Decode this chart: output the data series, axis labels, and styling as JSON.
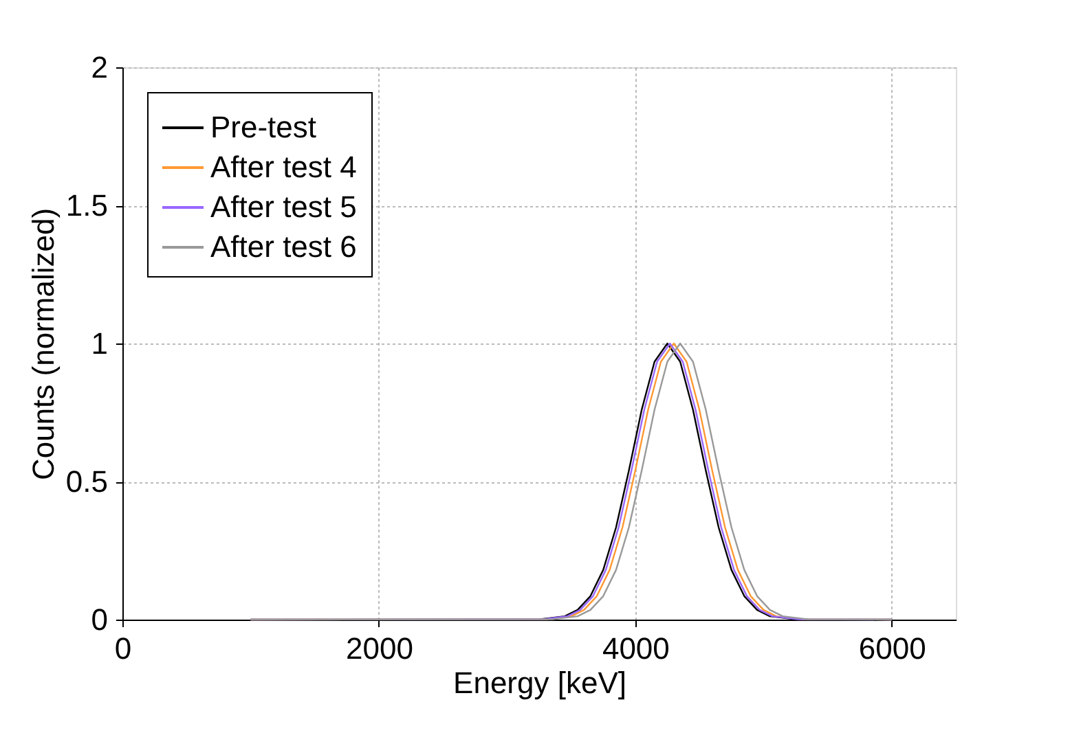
{
  "chart_data": {
    "type": "line",
    "xlabel": "Energy [keV]",
    "ylabel": "Counts (normalized)",
    "xlim": [
      0,
      6500
    ],
    "xticks": [
      0,
      2000,
      4000,
      6000
    ],
    "ylim": [
      0,
      2
    ],
    "yticks": [
      0,
      0.5,
      1,
      1.5,
      2
    ],
    "grid": true,
    "legend": "top left",
    "line_style": "solid",
    "marker": "none",
    "series": [
      {
        "name": "Pre-test",
        "color": "#000000",
        "x": [
          1000,
          3250,
          3450,
          3550,
          3650,
          3750,
          3850,
          3950,
          4050,
          4150,
          4250,
          4350,
          4450,
          4550,
          4650,
          4750,
          4850,
          4950,
          5050,
          5250,
          6000
        ],
        "values": [
          0,
          0.001,
          0.012,
          0.035,
          0.085,
          0.18,
          0.334,
          0.54,
          0.76,
          0.934,
          1,
          0.934,
          0.76,
          0.54,
          0.334,
          0.18,
          0.085,
          0.035,
          0.012,
          0.001,
          0
        ]
      },
      {
        "name": "After test 4",
        "color": "#ff9933",
        "x": [
          1000,
          3300,
          3500,
          3600,
          3700,
          3800,
          3900,
          4000,
          4100,
          4200,
          4300,
          4400,
          4500,
          4600,
          4700,
          4800,
          4900,
          5000,
          5100,
          5300,
          6000
        ],
        "values": [
          0,
          0.001,
          0.012,
          0.035,
          0.085,
          0.18,
          0.334,
          0.54,
          0.76,
          0.934,
          1,
          0.934,
          0.76,
          0.54,
          0.334,
          0.18,
          0.085,
          0.035,
          0.012,
          0.001,
          0
        ]
      },
      {
        "name": "After test 5",
        "color": "#9966ff",
        "x": [
          1000,
          3270,
          3470,
          3570,
          3670,
          3770,
          3870,
          3970,
          4070,
          4170,
          4270,
          4370,
          4470,
          4570,
          4670,
          4770,
          4870,
          4970,
          5070,
          5270,
          6000
        ],
        "values": [
          0,
          0.001,
          0.012,
          0.035,
          0.085,
          0.18,
          0.334,
          0.54,
          0.76,
          0.934,
          1,
          0.934,
          0.76,
          0.54,
          0.334,
          0.18,
          0.085,
          0.035,
          0.012,
          0.001,
          0
        ]
      },
      {
        "name": "After test 6",
        "color": "#999999",
        "x": [
          1000,
          3350,
          3550,
          3650,
          3750,
          3850,
          3950,
          4050,
          4150,
          4250,
          4350,
          4450,
          4550,
          4650,
          4750,
          4850,
          4950,
          5050,
          5150,
          5350,
          6000
        ],
        "values": [
          0,
          0.001,
          0.012,
          0.035,
          0.085,
          0.18,
          0.334,
          0.54,
          0.76,
          0.934,
          1,
          0.934,
          0.76,
          0.54,
          0.334,
          0.18,
          0.085,
          0.035,
          0.012,
          0.001,
          0
        ]
      }
    ]
  }
}
